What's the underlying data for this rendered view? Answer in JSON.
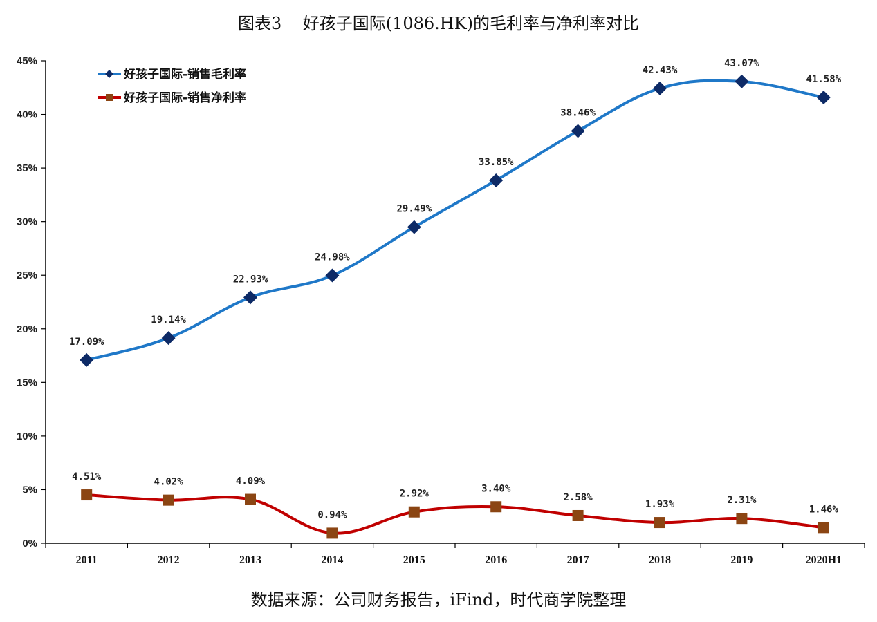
{
  "chart_data": {
    "type": "line",
    "title": "图表3    好孩子国际(1086.HK)的毛利率与净利率对比",
    "source_note": "数据来源：公司财务报告，iFind，时代商学院整理",
    "categories": [
      "2011",
      "2012",
      "2013",
      "2014",
      "2015",
      "2016",
      "2017",
      "2018",
      "2019",
      "2020H1"
    ],
    "ylim": [
      0,
      45
    ],
    "yticks": [
      0,
      5,
      10,
      15,
      20,
      25,
      30,
      35,
      40,
      45
    ],
    "ytick_labels": [
      "0%",
      "5%",
      "10%",
      "15%",
      "20%",
      "25%",
      "30%",
      "35%",
      "40%",
      "45%"
    ],
    "grid": false,
    "legend_position": "top-left",
    "series": [
      {
        "name": "好孩子国际-销售毛利率",
        "values": [
          17.09,
          19.14,
          22.93,
          24.98,
          29.49,
          33.85,
          38.46,
          42.43,
          43.07,
          41.58
        ],
        "labels": [
          "17.09%",
          "19.14%",
          "22.93%",
          "24.98%",
          "29.49%",
          "33.85%",
          "38.46%",
          "42.43%",
          "43.07%",
          "41.58%"
        ],
        "line_color": "#1f78c8",
        "marker": "diamond",
        "marker_color": "#0d2a66"
      },
      {
        "name": "好孩子国际-销售净利率",
        "values": [
          4.51,
          4.02,
          4.09,
          0.94,
          2.92,
          3.4,
          2.58,
          1.93,
          2.31,
          1.46
        ],
        "labels": [
          "4.51%",
          "4.02%",
          "4.09%",
          "0.94%",
          "2.92%",
          "3.40%",
          "2.58%",
          "1.93%",
          "2.31%",
          "1.46%"
        ],
        "line_color": "#c00000",
        "marker": "square",
        "marker_color": "#8b4513"
      }
    ]
  }
}
